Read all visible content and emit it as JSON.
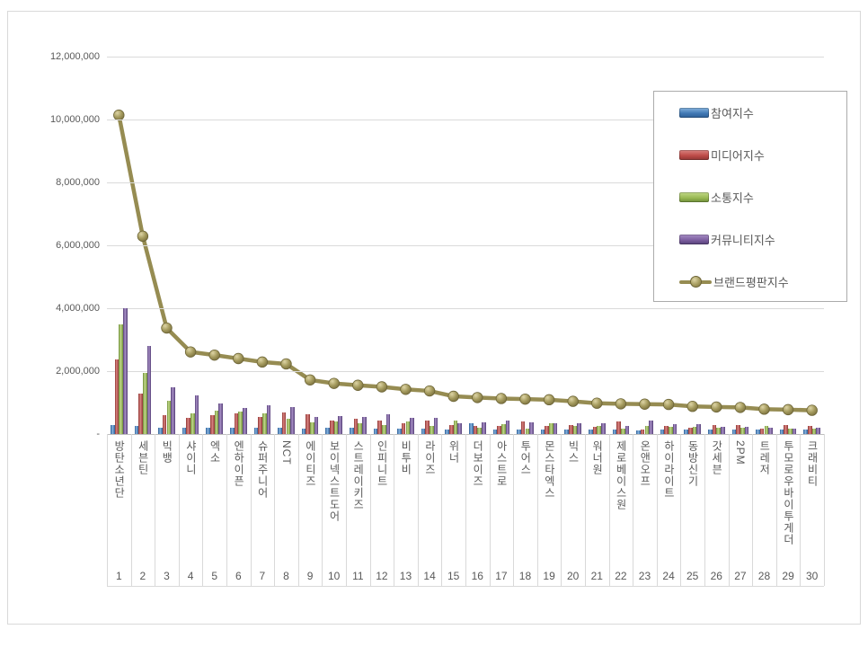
{
  "chart_data": {
    "type": "bar",
    "subtype": "grouped bars with overlaid line (brand reputation ranking)",
    "categories": [
      "방탄소년단",
      "세븐틴",
      "빅뱅",
      "샤이니",
      "엑소",
      "엔하이픈",
      "슈퍼주니어",
      "NCT",
      "에이티즈",
      "보이넥스트도어",
      "스트레이키즈",
      "인피니트",
      "비투비",
      "라이즈",
      "위너",
      "더보이즈",
      "아스트로",
      "투어스",
      "몬스타엑스",
      "빅스",
      "워너원",
      "제로베이스원",
      "온앤오프",
      "하이라이트",
      "동방신기",
      "갓세븐",
      "2PM",
      "트레저",
      "투모로우바이투게더",
      "크래비티"
    ],
    "ranks": [
      1,
      2,
      3,
      4,
      5,
      6,
      7,
      8,
      9,
      10,
      11,
      12,
      13,
      14,
      15,
      16,
      17,
      18,
      19,
      20,
      21,
      22,
      23,
      24,
      25,
      26,
      27,
      28,
      29,
      30
    ],
    "series": [
      {
        "name": "참여지수",
        "type": "bar",
        "color": "#4179b5",
        "values": [
          290000,
          250000,
          210000,
          190000,
          200000,
          210000,
          190000,
          200000,
          180000,
          190000,
          190000,
          185000,
          165000,
          175000,
          150000,
          330000,
          135000,
          150000,
          140000,
          140000,
          140000,
          145000,
          125000,
          135000,
          150000,
          155000,
          140000,
          135000,
          140000,
          130000
        ]
      },
      {
        "name": "미디어지수",
        "type": "bar",
        "color": "#bf4c49",
        "values": [
          2360000,
          1290000,
          610000,
          510000,
          590000,
          650000,
          530000,
          680000,
          620000,
          440000,
          480000,
          415000,
          350000,
          430000,
          280000,
          255000,
          255000,
          405000,
          265000,
          295000,
          230000,
          390000,
          155000,
          270000,
          190000,
          280000,
          275000,
          185000,
          295000,
          245000
        ]
      },
      {
        "name": "소통지수",
        "type": "bar",
        "color": "#9aba55",
        "values": [
          3480000,
          1940000,
          1070000,
          670000,
          740000,
          720000,
          660000,
          490000,
          370000,
          400000,
          345000,
          280000,
          395000,
          250000,
          420000,
          210000,
          320000,
          180000,
          335000,
          260000,
          270000,
          170000,
          255000,
          230000,
          235000,
          200000,
          205000,
          260000,
          160000,
          175000
        ]
      },
      {
        "name": "커뮤니티지수",
        "type": "bar",
        "color": "#7d5fa0",
        "values": [
          4010000,
          2810000,
          1480000,
          1240000,
          980000,
          820000,
          910000,
          860000,
          550000,
          580000,
          535000,
          620000,
          510000,
          515000,
          350000,
          365000,
          420000,
          375000,
          350000,
          345000,
          340000,
          255000,
          415000,
          305000,
          305000,
          225000,
          225000,
          210000,
          180000,
          205000
        ]
      },
      {
        "name": "브랜드평판지수",
        "type": "line",
        "color": "#968c52",
        "values": [
          10140000,
          6290000,
          3370000,
          2610000,
          2510000,
          2400000,
          2290000,
          2230000,
          1720000,
          1610000,
          1550000,
          1500000,
          1420000,
          1370000,
          1200000,
          1160000,
          1130000,
          1110000,
          1090000,
          1040000,
          980000,
          960000,
          950000,
          940000,
          880000,
          860000,
          845000,
          790000,
          775000,
          755000
        ]
      }
    ],
    "ylim": [
      0,
      12000000
    ],
    "y_ticks": [
      "12,000,000",
      "10,000,000",
      "8,000,000",
      "6,000,000",
      "4,000,000",
      "2,000,000",
      "-"
    ],
    "grid": true,
    "legend_position": "upper right",
    "title": ""
  }
}
